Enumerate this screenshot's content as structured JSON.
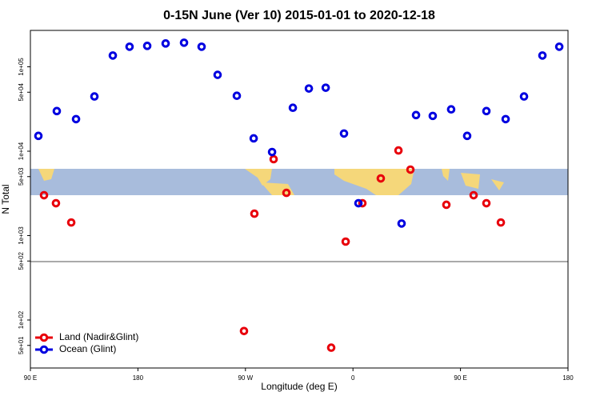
{
  "chart_data": {
    "type": "scatter",
    "title": "0-15N June (Ver 10)   2015-01-01 to 2020-12-18",
    "x_label": "Longitude (deg E)",
    "y_label": "N Total",
    "log_y": true,
    "legend": "bottom-left",
    "xlim": [
      90,
      540
    ],
    "xticks": [
      {
        "value": 90,
        "label": "90 E"
      },
      180,
      {
        "value": 270,
        "label": "90 W"
      },
      {
        "value": 360,
        "label": "0"
      },
      {
        "value": 450,
        "label": "90 E"
      },
      {
        "value": 540,
        "label": "180"
      }
    ],
    "ylim": [
      27,
      270000
    ],
    "yticks": [
      {
        "value": 50,
        "label": "5e+01"
      },
      {
        "value": 100,
        "label": "1e+02"
      },
      {
        "value": 500,
        "label": "5e+02"
      },
      {
        "value": 1000,
        "label": "1e+03"
      },
      {
        "value": 5000,
        "label": "5e+03"
      },
      {
        "value": 10000,
        "label": "1e+04"
      },
      {
        "value": 50000,
        "label": "5e+04"
      },
      {
        "value": 100000,
        "label": "1e+05"
      }
    ],
    "series": [
      {
        "name": "Land (Nadir&Glint)",
        "color": "#e8000b",
        "x": [
          101.4,
          111.4,
          124.2,
          268.8,
          277.5,
          293.6,
          304.3,
          341.8,
          353.9,
          367.9,
          383.3,
          398.1,
          408.1,
          438.2,
          461.0,
          471.7,
          483.8
        ],
        "values": [
          3010,
          2420,
          1430,
          74,
          1820,
          8040,
          3210,
          47,
          849,
          2420,
          4760,
          10200,
          6050,
          2320,
          3010,
          2420,
          1430
        ]
      },
      {
        "name": "Ocean (Glint)",
        "color": "#0000e0",
        "x": [
          96.7,
          112.1,
          128.2,
          143.6,
          159.0,
          173.0,
          187.8,
          203.2,
          218.6,
          233.3,
          246.7,
          262.8,
          276.9,
          292.3,
          309.7,
          323.1,
          337.2,
          352.5,
          364.6,
          400.7,
          412.8,
          426.8,
          442.2,
          455.6,
          471.7,
          487.8,
          503.2,
          518.6,
          532.7
        ],
        "values": [
          15200,
          29900,
          24000,
          44500,
          136000,
          173000,
          177000,
          189000,
          193000,
          173000,
          80300,
          45400,
          14200,
          9780,
          32700,
          55300,
          56500,
          16200,
          2420,
          1390,
          26800,
          26200,
          31300,
          15200,
          29900,
          24000,
          44500,
          136000,
          173000
        ]
      }
    ]
  }
}
